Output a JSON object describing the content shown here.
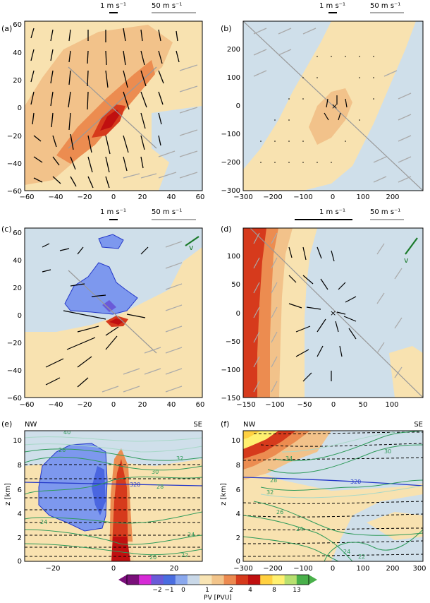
{
  "figure": {
    "panels": [
      {
        "letter": "(a)",
        "ref_small": "1 m s⁻¹",
        "ref_large": "50 m s⁻¹",
        "xticks": [
          "−60",
          "−40",
          "−20",
          "0",
          "20",
          "40",
          "60"
        ],
        "yticks": [
          "60",
          "40",
          "20",
          "0",
          "−20",
          "−40",
          "−60"
        ]
      },
      {
        "letter": "(b)",
        "ref_small": "1 m s⁻¹",
        "ref_large": "50 m s⁻¹",
        "xticks": [
          "−300",
          "−200",
          "−100",
          "0",
          "100",
          "200"
        ],
        "yticks": [
          "200",
          "100",
          "0",
          "−100",
          "−200",
          "−300"
        ]
      },
      {
        "letter": "(c)",
        "ref_small": "1 m s⁻¹",
        "ref_large": "50 m s⁻¹",
        "vz_label": "v",
        "xticks": [
          "−60",
          "−40",
          "−20",
          "0",
          "20",
          "40",
          "60"
        ],
        "yticks": [
          "60",
          "40",
          "20",
          "0",
          "−20",
          "−40",
          "−60"
        ]
      },
      {
        "letter": "(d)",
        "ref_small": "1 m s⁻¹",
        "ref_large": "50 m s⁻¹",
        "vz_label": "v",
        "xticks": [
          "−150",
          "−100",
          "−50",
          "0",
          "50",
          "100"
        ],
        "yticks": [
          "100",
          "50",
          "0",
          "−50",
          "−100",
          "−150"
        ]
      },
      {
        "letter": "(e)",
        "left_label": "NW",
        "right_label": "SE",
        "ylabel": "z [km]",
        "xticks": [
          "−20",
          "0",
          "20"
        ],
        "yticks": [
          "10",
          "8",
          "6",
          "4",
          "2",
          "0"
        ],
        "contour_labels": [
          "320",
          "30",
          "32",
          "28",
          "26",
          "24",
          "24",
          "22",
          "20",
          "40"
        ]
      },
      {
        "letter": "(f)",
        "left_label": "NW",
        "right_label": "SE",
        "ylabel": "z [km]",
        "xticks": [
          "−300",
          "−200",
          "−100",
          "0",
          "100",
          "200",
          "300"
        ],
        "yticks": [
          "10",
          "8",
          "6",
          "4",
          "2",
          "0"
        ],
        "contour_labels": [
          "320",
          "30",
          "32",
          "34",
          "26",
          "24",
          "22",
          "28",
          "24"
        ]
      }
    ],
    "colorbar": {
      "label": "PV [PVU]",
      "ticks": [
        "−2",
        "−1",
        "0",
        "1",
        "2",
        "4",
        "8",
        "13"
      ],
      "colors": [
        "#7a0f7a",
        "#d62ad6",
        "#6a5ad8",
        "#4a6de0",
        "#8aa8ee",
        "#c9d8e8",
        "#f8e4b4",
        "#f2c48a",
        "#ec8a50",
        "#d63a1c",
        "#c01010",
        "#ffd040",
        "#fff070",
        "#b8e070",
        "#49b04a"
      ]
    },
    "colors": {
      "ice_blue": "#cfdfea",
      "cream": "#f8e2b0",
      "light_orange": "#f2c28a",
      "orange": "#ec8c50",
      "red": "#d63a1c",
      "dark_red": "#c01010",
      "blue_fill": "#7d98ee",
      "deep_blue": "#4a66e0",
      "green_contour": "#2e9a5a",
      "vz_arrow": "#1a7a2a"
    }
  }
}
